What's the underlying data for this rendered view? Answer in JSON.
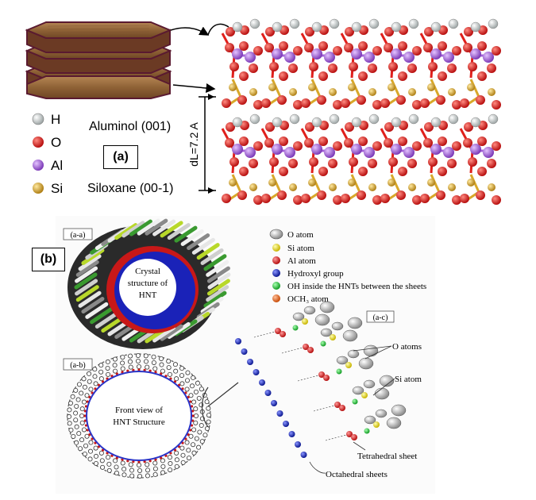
{
  "panel_a": {
    "label": "(a)",
    "legend": [
      {
        "symbol": "H",
        "color": "#e8ecec"
      },
      {
        "symbol": "O",
        "color": "#e0201c"
      },
      {
        "symbol": "Al",
        "color": "#a463d8"
      },
      {
        "symbol": "Si",
        "color": "#d8a82a"
      }
    ],
    "aluminol": "Aluminol (001)",
    "siloxane": "Siloxane (00-1)",
    "spacing": "dL=7.2 A"
  },
  "panel_b": {
    "label": "(b)",
    "sublabels": {
      "aa": "(a-a)",
      "ab": "(a-b)",
      "ac": "(a-c)"
    },
    "crystal_text": [
      "Crystal",
      "structure of",
      "HNT"
    ],
    "front_text": [
      "Front view of",
      "HNT Structure"
    ],
    "legend": [
      {
        "text": "O atom",
        "color": "#d6d6d6"
      },
      {
        "text": "Si atom",
        "color": "#f0e020"
      },
      {
        "text": "Al atom",
        "color": "#e02424"
      },
      {
        "text": "Hydroxyl group",
        "color": "#1f2fd0"
      },
      {
        "text": "OH inside the HNTs between the sheets",
        "color": "#22c43a"
      },
      {
        "text": "OCH₃ atom",
        "color": "#f06a1a"
      }
    ],
    "annotations": {
      "o_atoms": "O atoms",
      "si_atom": "Si atom",
      "tetrahedral": "Tetrahedral sheet",
      "octahedral": "Octahedral sheets"
    }
  }
}
